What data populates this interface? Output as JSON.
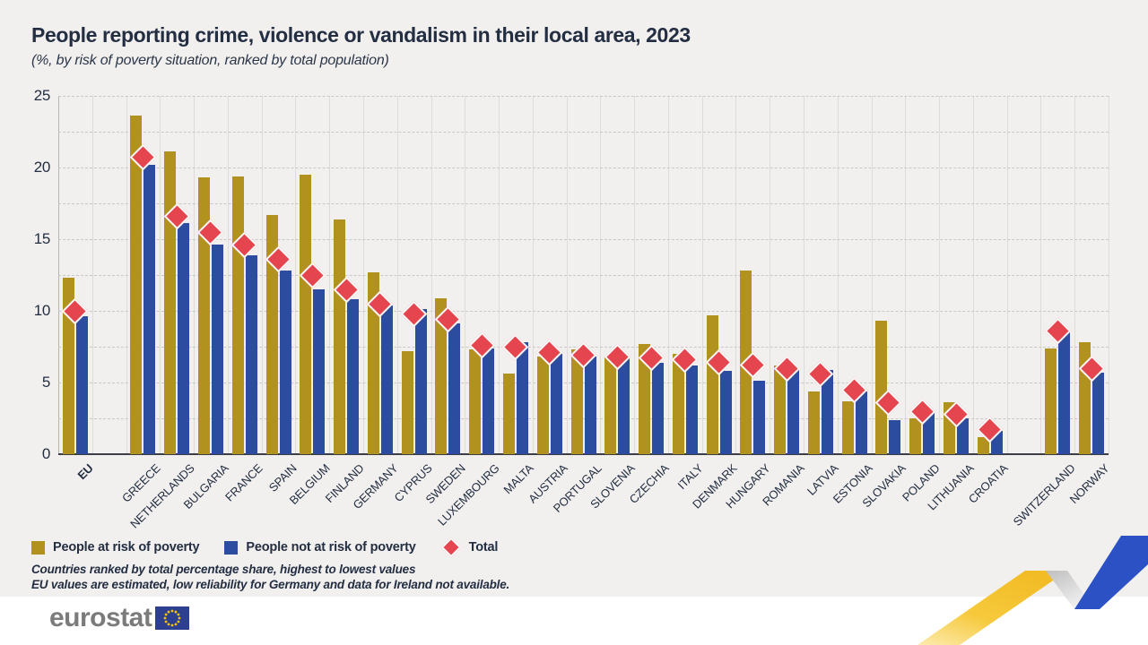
{
  "header": {
    "title": "People reporting crime, violence or vandalism in their local area, 2023",
    "subtitle": "(%, by risk of poverty situation, ranked by total population)"
  },
  "chart_data": {
    "type": "bar",
    "title": "People reporting crime, violence or vandalism in their local area, 2023",
    "subtitle": "(%, by risk of poverty situation, ranked by total population)",
    "unit": "%",
    "categories": [
      "EU",
      "GREECE",
      "NETHERLANDS",
      "BULGARIA",
      "FRANCE",
      "SPAIN",
      "BELGIUM",
      "FINLAND",
      "GERMANY",
      "CYPRUS",
      "SWEDEN",
      "LUXEMBOURG",
      "MALTA",
      "AUSTRIA",
      "PORTUGAL",
      "SLOVENIA",
      "CZECHIA",
      "ITALY",
      "DENMARK",
      "HUNGARY",
      "ROMANIA",
      "LATVIA",
      "ESTONIA",
      "SLOVAKIA",
      "POLAND",
      "LITHUANIA",
      "CROATIA",
      "SWITZERLAND",
      "NORWAY"
    ],
    "series": [
      {
        "name": "People at risk of poverty",
        "color": "#B2921E",
        "values": [
          12.3,
          23.6,
          21.1,
          19.3,
          19.4,
          16.7,
          19.5,
          16.4,
          12.7,
          7.2,
          10.9,
          7.3,
          5.6,
          6.8,
          7.3,
          6.8,
          7.7,
          7.0,
          9.7,
          12.8,
          6.2,
          4.4,
          3.7,
          9.3,
          2.5,
          3.6,
          1.2,
          7.4,
          7.8
        ]
      },
      {
        "name": "People not at risk of poverty",
        "color": "#2C4CA0",
        "values": [
          9.6,
          20.2,
          16.1,
          14.6,
          13.9,
          12.8,
          11.5,
          10.8,
          10.4,
          10.1,
          9.1,
          7.4,
          7.8,
          7.0,
          6.8,
          6.8,
          6.4,
          6.2,
          5.8,
          5.1,
          5.9,
          5.9,
          4.4,
          2.4,
          2.9,
          2.5,
          1.6,
          8.7,
          5.7
        ]
      }
    ],
    "totals": {
      "name": "Total",
      "color": "#E5454E",
      "values": [
        10.0,
        20.7,
        16.6,
        15.5,
        14.6,
        13.6,
        12.5,
        11.5,
        10.5,
        9.8,
        9.4,
        7.6,
        7.5,
        7.1,
        6.9,
        6.8,
        6.7,
        6.6,
        6.4,
        6.2,
        6.0,
        5.6,
        4.5,
        3.6,
        3.0,
        2.8,
        1.7,
        8.6,
        6.0
      ]
    },
    "ylim": [
      0,
      25
    ],
    "yticks": [
      0,
      5,
      10,
      15,
      20,
      25
    ],
    "grid": "horizontal dashed every 2.5, vertical solid per category",
    "legend_position": "bottom-left",
    "gap_after": [
      "EU",
      "CROATIA"
    ],
    "bold_category": "EU"
  },
  "legend": {
    "items": [
      {
        "label": "People at risk of poverty",
        "swatch": "square",
        "color": "#B2921E"
      },
      {
        "label": "People not at risk of poverty",
        "swatch": "square",
        "color": "#2C4CA0"
      },
      {
        "label": "Total",
        "swatch": "diamond",
        "color": "#E5454E"
      }
    ]
  },
  "footnotes": {
    "line1": "Countries ranked by total percentage share, highest to lowest values",
    "line2": "EU values are estimated, low reliability for Germany and data for Ireland not available."
  },
  "footer": {
    "logo_text": "eurostat"
  },
  "colors": {
    "background": "#F1F0EE",
    "footer_background": "#FFFFFF",
    "text": "#242E42",
    "bar_at_risk": "#B2921E",
    "bar_not_at_risk": "#2C4CA0",
    "total_diamond": "#E5454E",
    "axis_line": "#3B3E44",
    "gridline": "#C9C8C4",
    "logo_gray": "#7B7B7B",
    "ribbon_yellow": "#F3C12E",
    "ribbon_blue": "#2B51C4"
  }
}
